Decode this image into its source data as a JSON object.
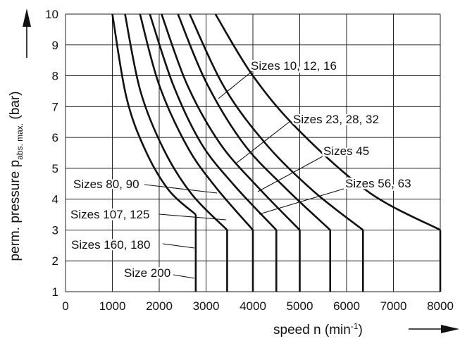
{
  "chart_data": {
    "type": "line",
    "xlabel_main": "speed n (min",
    "xlabel_sup": "-1",
    "xlabel_close": ")",
    "ylabel_main": "perm. pressure p",
    "ylabel_sub": "abs. max.",
    "ylabel_unit": " (bar)",
    "xlim": [
      0,
      8000
    ],
    "ylim": [
      1,
      10
    ],
    "xticks": [
      0,
      1000,
      2000,
      3000,
      4000,
      5000,
      6000,
      7000,
      8000
    ],
    "yticks": [
      1,
      2,
      3,
      4,
      5,
      6,
      7,
      8,
      9,
      10
    ],
    "grid": true,
    "series": [
      {
        "name": "Size 200",
        "points": [
          [
            1000,
            10
          ],
          [
            1300,
            7.3
          ],
          [
            1700,
            5.6
          ],
          [
            2200,
            4.3
          ],
          [
            2780,
            3.5
          ]
        ],
        "drop_x": 2780
      },
      {
        "name": "Sizes 160, 180",
        "points": [
          [
            1270,
            10
          ],
          [
            1600,
            7.5
          ],
          [
            2100,
            5.6
          ],
          [
            2700,
            4.15
          ],
          [
            3450,
            3.0
          ]
        ],
        "drop_x": 3450
      },
      {
        "name": "Sizes 107, 125",
        "points": [
          [
            1590,
            10
          ],
          [
            2000,
            7.7
          ],
          [
            2600,
            5.7
          ],
          [
            3200,
            4.4
          ],
          [
            4000,
            3.0
          ]
        ],
        "drop_x": 4000
      },
      {
        "name": "Sizes 80, 90",
        "points": [
          [
            1800,
            10
          ],
          [
            2300,
            7.7
          ],
          [
            2900,
            5.8
          ],
          [
            3600,
            4.45
          ],
          [
            4500,
            3.0
          ]
        ],
        "drop_x": 4500
      },
      {
        "name": "Sizes 56, 63",
        "points": [
          [
            2050,
            10
          ],
          [
            2600,
            7.7
          ],
          [
            3300,
            5.8
          ],
          [
            4100,
            4.4
          ],
          [
            5000,
            3.0
          ]
        ],
        "drop_x": 5000
      },
      {
        "name": "Sizes 45",
        "points": [
          [
            2400,
            10
          ],
          [
            3000,
            7.8
          ],
          [
            3800,
            5.8
          ],
          [
            4700,
            4.35
          ],
          [
            5650,
            3.0
          ]
        ],
        "drop_x": 5650
      },
      {
        "name": "Sizes 23, 28, 32",
        "points": [
          [
            2650,
            10
          ],
          [
            3400,
            7.6
          ],
          [
            4300,
            5.75
          ],
          [
            5300,
            4.25
          ],
          [
            6350,
            3.0
          ]
        ],
        "drop_x": 6350
      },
      {
        "name": "Sizes 10, 12, 16",
        "points": [
          [
            3200,
            10
          ],
          [
            4000,
            8.0
          ],
          [
            5000,
            6.2
          ],
          [
            6500,
            4.2
          ],
          [
            8000,
            3.0
          ]
        ],
        "drop_x": 8000
      }
    ]
  },
  "labels": {
    "s10": "Sizes 10, 12, 16",
    "s23": "Sizes 23, 28, 32",
    "s45": "Sizes 45",
    "s56": "Sizes 56, 63",
    "s80": "Sizes 80, 90",
    "s107": "Sizes 107, 125",
    "s160": "Sizes 160, 180",
    "s200": "Size 200"
  }
}
